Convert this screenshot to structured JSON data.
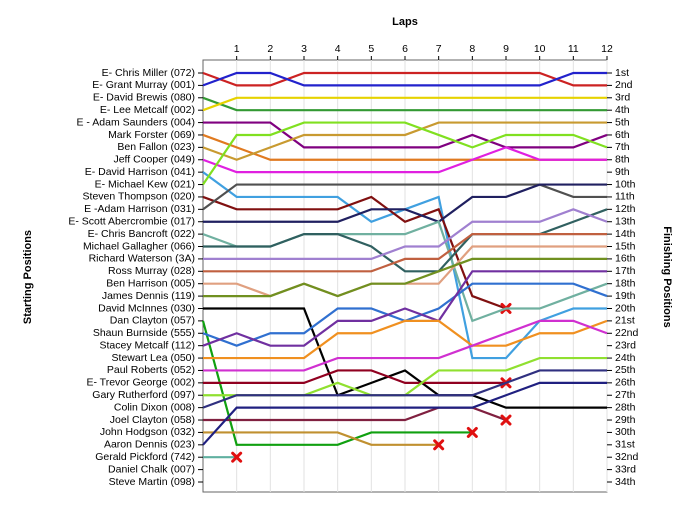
{
  "chart_data": {
    "type": "line",
    "title": "Laps",
    "y_label": "Starting Positions",
    "y2_label": "Finishing Positions",
    "x": [
      0,
      1,
      2,
      3,
      4,
      5,
      6,
      7,
      8,
      9,
      10,
      11,
      12
    ],
    "xlim": [
      0,
      12
    ],
    "xticks": [
      1,
      2,
      3,
      4,
      5,
      6,
      7,
      8,
      9,
      10,
      11,
      12
    ],
    "ylim": [
      1,
      34
    ],
    "y2lim": [
      1,
      34
    ],
    "y2ticks": [
      {
        "value": 1,
        "label": "1st"
      },
      {
        "value": 2,
        "label": "2nd"
      },
      {
        "value": 3,
        "label": "3rd"
      },
      {
        "value": 4,
        "label": "4th"
      },
      {
        "value": 5,
        "label": "5th"
      },
      {
        "value": 6,
        "label": "6th"
      },
      {
        "value": 7,
        "label": "7th"
      },
      {
        "value": 8,
        "label": "8th"
      },
      {
        "value": 9,
        "label": "9th"
      },
      {
        "value": 10,
        "label": "10th"
      },
      {
        "value": 11,
        "label": "11th"
      },
      {
        "value": 12,
        "label": "12th"
      },
      {
        "value": 13,
        "label": "13th"
      },
      {
        "value": 14,
        "label": "14th"
      },
      {
        "value": 15,
        "label": "15th"
      },
      {
        "value": 16,
        "label": "16th"
      },
      {
        "value": 17,
        "label": "17th"
      },
      {
        "value": 18,
        "label": "18th"
      },
      {
        "value": 19,
        "label": "19th"
      },
      {
        "value": 20,
        "label": "20th"
      },
      {
        "value": 21,
        "label": "21st"
      },
      {
        "value": 22,
        "label": "22nd"
      },
      {
        "value": 23,
        "label": "23rd"
      },
      {
        "value": 24,
        "label": "24th"
      },
      {
        "value": 25,
        "label": "25th"
      },
      {
        "value": 26,
        "label": "26th"
      },
      {
        "value": 27,
        "label": "27th"
      },
      {
        "value": 28,
        "label": "28th"
      },
      {
        "value": 29,
        "label": "29th"
      },
      {
        "value": 30,
        "label": "30th"
      },
      {
        "value": 31,
        "label": "31st"
      },
      {
        "value": 32,
        "label": "32nd"
      },
      {
        "value": 33,
        "label": "33rd"
      },
      {
        "value": 34,
        "label": "34th"
      }
    ],
    "grid": true,
    "series": [
      {
        "name": "E- Chris Miller (072)",
        "color": "#cc2222",
        "values": [
          1,
          2,
          2,
          1,
          1,
          1,
          1,
          1,
          1,
          1,
          1,
          2,
          2
        ]
      },
      {
        "name": "E- Grant Murray (001)",
        "color": "#2222cc",
        "values": [
          2,
          1,
          1,
          2,
          2,
          2,
          2,
          2,
          2,
          2,
          2,
          1,
          1
        ]
      },
      {
        "name": "E- David Brewis (080)",
        "color": "#339933",
        "values": [
          3,
          4,
          4,
          4,
          4,
          4,
          4,
          4,
          4,
          4,
          4,
          4,
          4
        ]
      },
      {
        "name": "E- Lee Metcalf (002)",
        "color": "#e6d200",
        "values": [
          4,
          3,
          3,
          3,
          3,
          3,
          3,
          3,
          3,
          3,
          3,
          3,
          3
        ]
      },
      {
        "name": "E - Adam Saunders (004)",
        "color": "#800080",
        "values": [
          5,
          5,
          5,
          7,
          7,
          7,
          7,
          7,
          6,
          7,
          7,
          7,
          6
        ]
      },
      {
        "name": "Mark Forster (069)",
        "color": "#e07a20",
        "values": [
          6,
          7,
          8,
          8,
          8,
          8,
          8,
          8,
          8,
          8,
          8,
          8,
          8
        ]
      },
      {
        "name": "Ben Fallon (023)",
        "color": "#c89a30",
        "values": [
          7,
          8,
          7,
          6,
          6,
          6,
          6,
          5,
          5,
          5,
          5,
          5,
          5
        ]
      },
      {
        "name": "Jeff Cooper (049)",
        "color": "#e020e0",
        "values": [
          8,
          9,
          9,
          9,
          9,
          9,
          9,
          9,
          8,
          7,
          8,
          8,
          8
        ]
      },
      {
        "name": "E- David Harrison (041)",
        "color": "#40a0e0",
        "values": [
          9,
          11,
          11,
          11,
          11,
          13,
          12,
          11,
          24,
          24,
          21,
          20,
          20
        ]
      },
      {
        "name": "E- Michael Kew (021)",
        "color": "#80e020",
        "values": [
          10,
          6,
          6,
          5,
          5,
          5,
          5,
          6,
          7,
          6,
          6,
          6,
          7
        ]
      },
      {
        "name": "Steven Thompson (020)",
        "color": "#801010",
        "values": [
          11,
          12,
          12,
          12,
          12,
          11,
          13,
          12,
          19,
          20,
          null,
          null,
          null
        ]
      },
      {
        "name": "E -Adam Harrison (031)",
        "color": "#505050",
        "values": [
          12,
          10,
          10,
          10,
          10,
          10,
          10,
          10,
          10,
          10,
          10,
          11,
          11
        ]
      },
      {
        "name": "E- Scott Abercrombie (017)",
        "color": "#202060",
        "values": [
          13,
          13,
          13,
          13,
          13,
          12,
          12,
          13,
          11,
          11,
          10,
          10,
          10
        ]
      },
      {
        "name": "E- Chris Bancroft (022)",
        "color": "#70b0a0",
        "values": [
          14,
          15,
          15,
          14,
          14,
          14,
          14,
          13,
          21,
          20,
          20,
          19,
          18
        ]
      },
      {
        "name": "Michael Gallagher (066)",
        "color": "#306060",
        "values": [
          15,
          15,
          15,
          14,
          14,
          15,
          17,
          17,
          14,
          14,
          14,
          13,
          12
        ]
      },
      {
        "name": "Richard Waterson (3A)",
        "color": "#a080d0",
        "values": [
          16,
          16,
          16,
          16,
          16,
          16,
          15,
          15,
          13,
          13,
          13,
          12,
          13
        ]
      },
      {
        "name": "Ross Murray (028)",
        "color": "#c06040",
        "values": [
          17,
          17,
          17,
          17,
          17,
          17,
          16,
          16,
          14,
          14,
          14,
          14,
          14
        ]
      },
      {
        "name": "Ben Harrison (005)",
        "color": "#e0a080",
        "values": [
          18,
          18,
          19,
          18,
          19,
          18,
          18,
          18,
          15,
          15,
          15,
          15,
          15
        ]
      },
      {
        "name": "James Dennis (119)",
        "color": "#709020",
        "values": [
          19,
          19,
          19,
          18,
          19,
          18,
          18,
          17,
          16,
          16,
          16,
          16,
          16
        ]
      },
      {
        "name": "David McInnes (030)",
        "color": "#000000",
        "values": [
          20,
          20,
          20,
          20,
          27,
          26,
          25,
          27,
          27,
          28,
          28,
          28,
          28
        ]
      },
      {
        "name": "Dan Clayton (057)",
        "color": "#10a010",
        "values": [
          21,
          31,
          31,
          31,
          31,
          30,
          30,
          30,
          30,
          null,
          null,
          null,
          null
        ]
      },
      {
        "name": "Shaun Burnside (555)",
        "color": "#3070d0",
        "values": [
          22,
          23,
          22,
          22,
          20,
          20,
          21,
          20,
          18,
          18,
          18,
          18,
          19
        ]
      },
      {
        "name": "Stacey Metcalf (112)",
        "color": "#7030a0",
        "values": [
          23,
          22,
          23,
          23,
          21,
          21,
          20,
          21,
          17,
          17,
          17,
          17,
          17
        ]
      },
      {
        "name": "Stewart Lea (050)",
        "color": "#f09020",
        "values": [
          24,
          24,
          24,
          24,
          22,
          22,
          21,
          21,
          23,
          23,
          22,
          22,
          21
        ]
      },
      {
        "name": "Paul Roberts (052)",
        "color": "#d030d0",
        "values": [
          25,
          25,
          25,
          25,
          24,
          24,
          24,
          24,
          23,
          22,
          21,
          21,
          22
        ]
      },
      {
        "name": "E- Trevor George (002)",
        "color": "#900020",
        "values": [
          26,
          26,
          26,
          26,
          25,
          25,
          26,
          26,
          26,
          26,
          null,
          null,
          null
        ]
      },
      {
        "name": "Gary Rutherford (097)",
        "color": "#90e030",
        "values": [
          27,
          27,
          27,
          27,
          26,
          27,
          27,
          25,
          25,
          25,
          24,
          24,
          24
        ]
      },
      {
        "name": "Colin Dixon (008)",
        "color": "#303080",
        "values": [
          28,
          27,
          27,
          27,
          27,
          27,
          27,
          27,
          27,
          26,
          25,
          25,
          25
        ]
      },
      {
        "name": "Joel Clayton (058)",
        "color": "#802040",
        "values": [
          29,
          29,
          29,
          29,
          29,
          29,
          29,
          28,
          28,
          29,
          null,
          null,
          null
        ]
      },
      {
        "name": "John Hodgson (032)",
        "color": "#c09030",
        "values": [
          30,
          30,
          30,
          30,
          30,
          31,
          31,
          31,
          null,
          null,
          null,
          null,
          null
        ]
      },
      {
        "name": "Aaron Dennis (023)",
        "color": "#202080",
        "values": [
          31,
          28,
          28,
          28,
          28,
          28,
          28,
          28,
          28,
          27,
          26,
          26,
          26
        ]
      },
      {
        "name": "Gerald Pickford (742)",
        "color": "#60b0a0",
        "values": [
          32,
          32,
          null,
          null,
          null,
          null,
          null,
          null,
          null,
          null,
          null,
          null,
          null
        ]
      },
      {
        "name": "Daniel Chalk (007)",
        "color": "#888888",
        "values": [
          null,
          null,
          null,
          null,
          null,
          null,
          null,
          null,
          null,
          null,
          null,
          null,
          null
        ]
      },
      {
        "name": "Steve Martin (098)",
        "color": "#888888",
        "values": [
          null,
          null,
          null,
          null,
          null,
          null,
          null,
          null,
          null,
          null,
          null,
          null,
          null
        ]
      }
    ]
  }
}
